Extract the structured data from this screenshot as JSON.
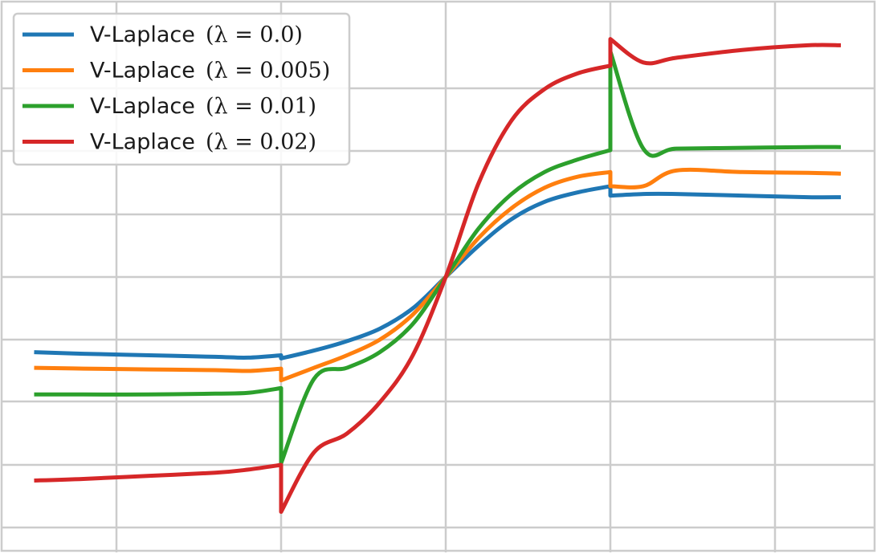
{
  "chart_data": {
    "type": "line",
    "title": "",
    "xlabel": "",
    "ylabel": "",
    "xlim": [
      -2.5,
      2.5
    ],
    "ylim": [
      -1.6,
      1.7
    ],
    "grid": true,
    "legend_position": "top-left",
    "series": [
      {
        "name": "V-Laplace",
        "lambda_label": "(λ = 0.0)",
        "color": "#1f77b4",
        "x": [
          -2.5,
          -2.2,
          -1.8,
          -1.4,
          -1.2,
          -1.0,
          -1.0,
          -0.8,
          -0.6,
          -0.4,
          -0.2,
          0.0,
          0.2,
          0.4,
          0.6,
          0.8,
          1.0,
          1.0,
          1.2,
          1.4,
          1.8,
          2.2,
          2.4
        ],
        "y": [
          -0.48,
          -0.49,
          -0.5,
          -0.51,
          -0.515,
          -0.5,
          -0.52,
          -0.47,
          -0.41,
          -0.33,
          -0.2,
          0.0,
          0.2,
          0.37,
          0.48,
          0.54,
          0.58,
          0.52,
          0.53,
          0.53,
          0.52,
          0.51,
          0.51
        ]
      },
      {
        "name": "V-Laplace",
        "lambda_label": "(λ = 0.005)",
        "color": "#ff7f0e",
        "x": [
          -2.5,
          -2.2,
          -1.8,
          -1.4,
          -1.2,
          -1.0,
          -1.0,
          -0.8,
          -0.6,
          -0.4,
          -0.2,
          0.0,
          0.2,
          0.4,
          0.6,
          0.8,
          1.0,
          1.0,
          1.2,
          1.4,
          1.8,
          2.2,
          2.4
        ],
        "y": [
          -0.58,
          -0.585,
          -0.59,
          -0.595,
          -0.6,
          -0.585,
          -0.66,
          -0.58,
          -0.5,
          -0.4,
          -0.24,
          0.0,
          0.25,
          0.44,
          0.57,
          0.64,
          0.67,
          0.58,
          0.58,
          0.68,
          0.67,
          0.665,
          0.66
        ]
      },
      {
        "name": "V-Laplace",
        "lambda_label": "(λ = 0.01)",
        "color": "#2ca02c",
        "x": [
          -2.5,
          -2.2,
          -1.8,
          -1.4,
          -1.2,
          -1.0,
          -1.0,
          -0.8,
          -0.6,
          -0.4,
          -0.2,
          0.0,
          0.2,
          0.4,
          0.6,
          0.8,
          1.0,
          1.0,
          1.2,
          1.4,
          1.8,
          2.2,
          2.4
        ],
        "y": [
          -0.75,
          -0.75,
          -0.75,
          -0.745,
          -0.74,
          -0.71,
          -1.19,
          -0.65,
          -0.58,
          -0.48,
          -0.3,
          0.0,
          0.31,
          0.53,
          0.67,
          0.75,
          0.81,
          1.44,
          0.82,
          0.82,
          0.825,
          0.83,
          0.83
        ]
      },
      {
        "name": "V-Laplace",
        "lambda_label": "(λ = 0.02)",
        "color": "#d62728",
        "x": [
          -2.5,
          -2.2,
          -1.8,
          -1.4,
          -1.2,
          -1.0,
          -1.0,
          -0.8,
          -0.6,
          -0.4,
          -0.2,
          0.0,
          0.2,
          0.4,
          0.6,
          0.8,
          1.0,
          1.0,
          1.2,
          1.4,
          1.8,
          2.2,
          2.4
        ],
        "y": [
          -1.3,
          -1.29,
          -1.27,
          -1.25,
          -1.23,
          -1.2,
          -1.5,
          -1.12,
          -1.0,
          -0.8,
          -0.5,
          0.0,
          0.6,
          1.0,
          1.2,
          1.3,
          1.35,
          1.52,
          1.37,
          1.4,
          1.45,
          1.48,
          1.48
        ]
      }
    ]
  }
}
